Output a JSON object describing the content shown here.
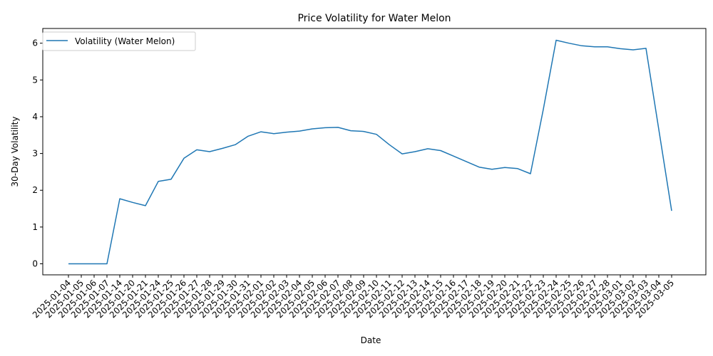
{
  "chart_data": {
    "type": "line",
    "title": "Price Volatility for Water Melon",
    "xlabel": "Date",
    "ylabel": "30-Day Volatility",
    "ylim": [
      -0.3,
      6.4
    ],
    "yticks": [
      0,
      1,
      2,
      3,
      4,
      5,
      6
    ],
    "grid": false,
    "legend_position": "top-left",
    "series": [
      {
        "name": "Volatility (Water Melon)",
        "color": "#1f77b4",
        "x": [
          "2025-01-04",
          "2025-01-05",
          "2025-01-06",
          "2025-01-07",
          "2025-01-14",
          "2025-01-20",
          "2025-01-21",
          "2025-01-24",
          "2025-01-25",
          "2025-01-26",
          "2025-01-27",
          "2025-01-28",
          "2025-01-29",
          "2025-01-30",
          "2025-01-31",
          "2025-02-01",
          "2025-02-02",
          "2025-02-03",
          "2025-02-04",
          "2025-02-05",
          "2025-02-06",
          "2025-02-07",
          "2025-02-08",
          "2025-02-09",
          "2025-02-10",
          "2025-02-11",
          "2025-02-12",
          "2025-02-13",
          "2025-02-14",
          "2025-02-15",
          "2025-02-16",
          "2025-02-17",
          "2025-02-18",
          "2025-02-19",
          "2025-02-20",
          "2025-02-21",
          "2025-02-22",
          "2025-02-23",
          "2025-02-24",
          "2025-02-25",
          "2025-02-26",
          "2025-02-27",
          "2025-02-28",
          "2025-03-01",
          "2025-03-02",
          "2025-03-03",
          "2025-03-04",
          "2025-03-05"
        ],
        "values": [
          0,
          0,
          0,
          0,
          1.77,
          1.67,
          1.58,
          2.24,
          2.3,
          2.87,
          3.1,
          3.05,
          3.14,
          3.24,
          3.47,
          3.59,
          3.54,
          3.58,
          3.61,
          3.67,
          3.7,
          3.71,
          3.62,
          3.6,
          3.52,
          3.24,
          2.99,
          3.05,
          3.13,
          3.08,
          2.93,
          2.78,
          2.63,
          2.57,
          2.62,
          2.59,
          2.45,
          4.2,
          6.08,
          6.0,
          5.93,
          5.9,
          5.9,
          5.85,
          5.82,
          5.86,
          3.65,
          1.44
        ]
      }
    ]
  }
}
